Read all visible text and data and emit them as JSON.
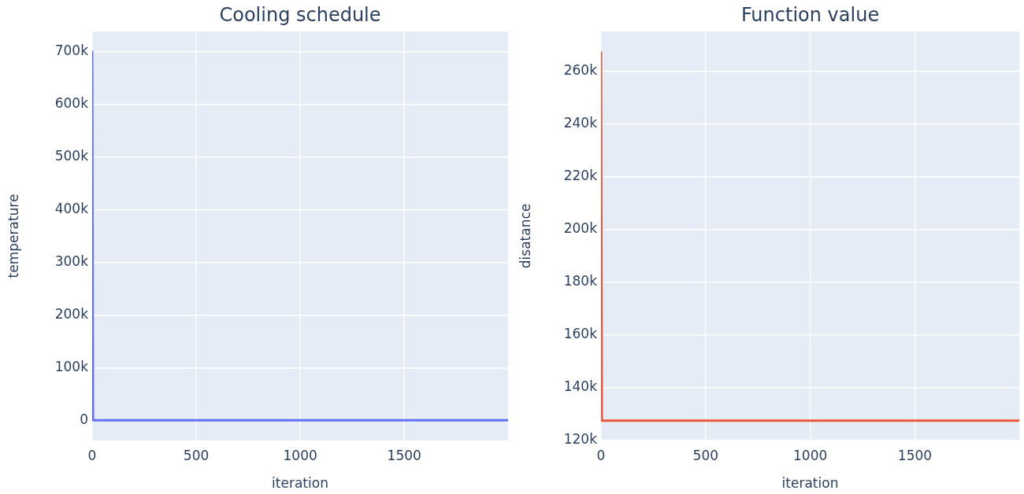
{
  "chart_data": [
    {
      "type": "line",
      "title": "Cooling schedule",
      "xlabel": "iteration",
      "ylabel": "temperature",
      "x": [
        0,
        4,
        1999
      ],
      "series": [
        {
          "color": "#636efa",
          "values": [
            700000,
            0,
            0
          ]
        }
      ],
      "xlim": [
        0,
        1999
      ],
      "xticks": [
        0,
        500,
        1000,
        1500
      ],
      "ylim": [
        -38500,
        738500
      ],
      "yticks": [
        0,
        {
          "value": 100000,
          "label": "100k"
        },
        {
          "value": 200000,
          "label": "200k"
        },
        {
          "value": 300000,
          "label": "300k"
        },
        {
          "value": 400000,
          "label": "400k"
        },
        {
          "value": 500000,
          "label": "500k"
        },
        {
          "value": 600000,
          "label": "600k"
        },
        {
          "value": 700000,
          "label": "700k"
        }
      ],
      "grid": true
    },
    {
      "type": "line",
      "title": "Function value",
      "xlabel": "iteration",
      "ylabel": "disatance",
      "x": [
        0,
        4,
        1999
      ],
      "series": [
        {
          "color": "#ef553b",
          "values": [
            267000,
            127500,
            127500
          ]
        }
      ],
      "xlim": [
        0,
        1999
      ],
      "xticks": [
        0,
        500,
        1000,
        1500
      ],
      "ylim": [
        120000,
        275000
      ],
      "yticks": [
        {
          "value": 120000,
          "label": "120k"
        },
        {
          "value": 140000,
          "label": "140k"
        },
        {
          "value": 160000,
          "label": "160k"
        },
        {
          "value": 180000,
          "label": "180k"
        },
        {
          "value": 200000,
          "label": "200k"
        },
        {
          "value": 220000,
          "label": "220k"
        },
        {
          "value": 240000,
          "label": "240k"
        },
        {
          "value": 260000,
          "label": "260k"
        }
      ],
      "grid": true
    }
  ]
}
